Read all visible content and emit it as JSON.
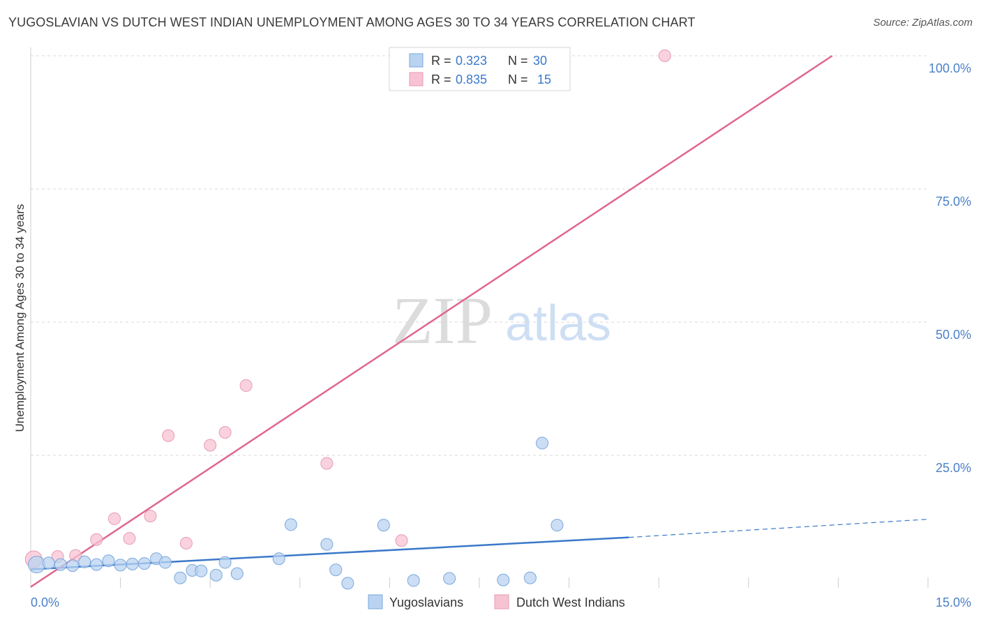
{
  "title": "YUGOSLAVIAN VS DUTCH WEST INDIAN UNEMPLOYMENT AMONG AGES 30 TO 34 YEARS CORRELATION CHART",
  "source": "Source: ZipAtlas.com",
  "watermark": {
    "zip": "ZIP",
    "atlas": "atlas"
  },
  "colors": {
    "yugoslavians": "#3a78c9",
    "yugoslavians_fill": "#b9d3f0",
    "dutch_west_indians": "#e0668e",
    "dutch_west_indians_fill": "#f7c3d3",
    "tick_label": "#4a80c8",
    "grid": "#d9d9d9"
  },
  "legend_top": {
    "rows": [
      {
        "r_label": "R =",
        "r_value": "0.323",
        "n_label": "N =",
        "n_value": "30"
      },
      {
        "r_label": "R =",
        "r_value": "0.835",
        "n_label": "N =",
        "n_value": "15"
      }
    ]
  },
  "legend_bottom": [
    "Yugoslavians",
    "Dutch West Indians"
  ],
  "chart_data": {
    "type": "scatter",
    "title": "YUGOSLAVIAN VS DUTCH WEST INDIAN UNEMPLOYMENT AMONG AGES 30 TO 34 YEARS CORRELATION CHART",
    "xlabel": "",
    "ylabel": "Unemployment Among Ages 30 to 34 years",
    "xlim": [
      0,
      15
    ],
    "ylim": [
      0,
      102
    ],
    "x_tick_labels": [
      "0.0%",
      "15.0%"
    ],
    "y_ticks": [
      25,
      50,
      75,
      100
    ],
    "y_tick_labels": [
      "25.0%",
      "50.0%",
      "75.0%",
      "100.0%"
    ],
    "grid": true,
    "legend_placement": "bottom-center",
    "series": [
      {
        "name": "Yugoslavians",
        "points": [
          [
            0.1,
            4.5
          ],
          [
            0.3,
            4.8
          ],
          [
            0.5,
            4.5
          ],
          [
            0.7,
            4.3
          ],
          [
            0.9,
            5.0
          ],
          [
            1.1,
            4.5
          ],
          [
            1.3,
            5.2
          ],
          [
            1.5,
            4.4
          ],
          [
            1.7,
            4.6
          ],
          [
            1.9,
            4.7
          ],
          [
            2.1,
            5.6
          ],
          [
            2.25,
            4.9
          ],
          [
            2.5,
            2.0
          ],
          [
            2.7,
            3.4
          ],
          [
            2.85,
            3.3
          ],
          [
            3.1,
            2.5
          ],
          [
            3.25,
            4.9
          ],
          [
            3.45,
            2.8
          ],
          [
            4.15,
            5.6
          ],
          [
            4.35,
            12.0
          ],
          [
            4.95,
            8.3
          ],
          [
            5.1,
            3.5
          ],
          [
            5.3,
            1.0
          ],
          [
            5.9,
            11.9
          ],
          [
            6.4,
            1.5
          ],
          [
            7.0,
            1.9
          ],
          [
            7.9,
            1.6
          ],
          [
            8.35,
            2.0
          ],
          [
            8.55,
            27.3
          ],
          [
            8.8,
            11.9
          ]
        ],
        "trend": {
          "x": [
            0,
            10
          ],
          "y": [
            3.6,
            9.6
          ],
          "dashed_extension_to": [
            15,
            13.0
          ]
        }
      },
      {
        "name": "Dutch West Indians",
        "points": [
          [
            0.05,
            5.5
          ],
          [
            0.45,
            6.0
          ],
          [
            0.75,
            6.2
          ],
          [
            1.1,
            9.2
          ],
          [
            1.4,
            13.1
          ],
          [
            1.65,
            9.4
          ],
          [
            2.0,
            13.6
          ],
          [
            2.3,
            28.7
          ],
          [
            2.6,
            8.5
          ],
          [
            3.0,
            26.9
          ],
          [
            3.25,
            29.3
          ],
          [
            3.6,
            38.1
          ],
          [
            4.95,
            23.5
          ],
          [
            6.2,
            9.0
          ],
          [
            10.6,
            100.0
          ]
        ],
        "trend": {
          "x": [
            0,
            13.4
          ],
          "y": [
            0.3,
            100.0
          ]
        }
      }
    ]
  }
}
